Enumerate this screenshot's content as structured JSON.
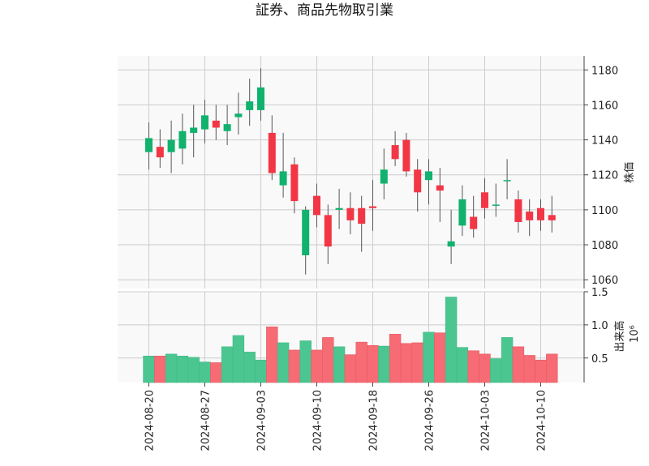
{
  "chart_data": {
    "type": "candlestick",
    "title": "証券、商品先物取引業",
    "price_axis_label": "株価",
    "volume_axis_label": "出来高",
    "volume_multiplier_label": "10⁶",
    "date_tick_labels": [
      "2024-08-20",
      "2024-08-27",
      "2024-09-03",
      "2024-09-10",
      "2024-09-18",
      "2024-09-26",
      "2024-10-03",
      "2024-10-10"
    ],
    "price_ylim": [
      1055,
      1188
    ],
    "price_ticks": [
      1060,
      1080,
      1100,
      1120,
      1140,
      1160,
      1180
    ],
    "volume_ylim": [
      0.13,
      1.5
    ],
    "volume_ticks": [
      0.5,
      1.0,
      1.5
    ],
    "colors": {
      "up": "#10b26e",
      "down": "#f23645",
      "up_volume": "#4cc691",
      "down_volume": "#f66b74",
      "wick": "#555555",
      "grid": "#cccccc",
      "panel": "#f9f9f9"
    },
    "candles": [
      {
        "date": "2024-08-20",
        "open": 1133,
        "high": 1150,
        "low": 1123,
        "close": 1141,
        "volume": 0.53
      },
      {
        "date": "2024-08-21",
        "open": 1136,
        "high": 1146,
        "low": 1124,
        "close": 1130,
        "volume": 0.53
      },
      {
        "date": "2024-08-22",
        "open": 1133,
        "high": 1151,
        "low": 1121,
        "close": 1140,
        "volume": 0.56
      },
      {
        "date": "2024-08-23",
        "open": 1135,
        "high": 1155,
        "low": 1126,
        "close": 1145,
        "volume": 0.53
      },
      {
        "date": "2024-08-26",
        "open": 1144,
        "high": 1160,
        "low": 1130,
        "close": 1147,
        "volume": 0.51
      },
      {
        "date": "2024-08-27",
        "open": 1146,
        "high": 1163,
        "low": 1138,
        "close": 1154,
        "volume": 0.44
      },
      {
        "date": "2024-08-28",
        "open": 1151,
        "high": 1160,
        "low": 1140,
        "close": 1147,
        "volume": 0.43
      },
      {
        "date": "2024-08-29",
        "open": 1145,
        "high": 1160,
        "low": 1137,
        "close": 1149,
        "volume": 0.67
      },
      {
        "date": "2024-08-30",
        "open": 1153,
        "high": 1167,
        "low": 1143,
        "close": 1155,
        "volume": 0.84
      },
      {
        "date": "2024-09-02",
        "open": 1157,
        "high": 1175,
        "low": 1148,
        "close": 1162,
        "volume": 0.59
      },
      {
        "date": "2024-09-03",
        "open": 1157,
        "high": 1181,
        "low": 1151,
        "close": 1170,
        "volume": 0.47
      },
      {
        "date": "2024-09-04",
        "open": 1144,
        "high": 1154,
        "low": 1117,
        "close": 1121,
        "volume": 0.97
      },
      {
        "date": "2024-09-05",
        "open": 1114,
        "high": 1144,
        "low": 1107,
        "close": 1122,
        "volume": 0.73
      },
      {
        "date": "2024-09-06",
        "open": 1126,
        "high": 1130,
        "low": 1098,
        "close": 1105,
        "volume": 0.62
      },
      {
        "date": "2024-09-09",
        "open": 1074,
        "high": 1102,
        "low": 1063,
        "close": 1100,
        "volume": 0.76
      },
      {
        "date": "2024-09-10",
        "open": 1108,
        "high": 1115,
        "low": 1090,
        "close": 1097,
        "volume": 0.62
      },
      {
        "date": "2024-09-11",
        "open": 1097,
        "high": 1103,
        "low": 1069,
        "close": 1079,
        "volume": 0.81
      },
      {
        "date": "2024-09-12",
        "open": 1100,
        "high": 1112,
        "low": 1089,
        "close": 1101,
        "volume": 0.67
      },
      {
        "date": "2024-09-13",
        "open": 1101,
        "high": 1110,
        "low": 1086,
        "close": 1094,
        "volume": 0.55
      },
      {
        "date": "2024-09-17",
        "open": 1101,
        "high": 1108,
        "low": 1076,
        "close": 1092,
        "volume": 0.74
      },
      {
        "date": "2024-09-18",
        "open": 1102,
        "high": 1117,
        "low": 1088,
        "close": 1101,
        "volume": 0.69
      },
      {
        "date": "2024-09-19",
        "open": 1115,
        "high": 1135,
        "low": 1106,
        "close": 1123,
        "volume": 0.68
      },
      {
        "date": "2024-09-20",
        "open": 1137,
        "high": 1145,
        "low": 1125,
        "close": 1129,
        "volume": 0.86
      },
      {
        "date": "2024-09-24",
        "open": 1140,
        "high": 1144,
        "low": 1119,
        "close": 1122,
        "volume": 0.72
      },
      {
        "date": "2024-09-25",
        "open": 1123,
        "high": 1129,
        "low": 1099,
        "close": 1110,
        "volume": 0.73
      },
      {
        "date": "2024-09-26",
        "open": 1117,
        "high": 1129,
        "low": 1103,
        "close": 1122,
        "volume": 0.89
      },
      {
        "date": "2024-09-27",
        "open": 1114,
        "high": 1124,
        "low": 1093,
        "close": 1111,
        "volume": 0.88
      },
      {
        "date": "2024-09-30",
        "open": 1079,
        "high": 1100,
        "low": 1069,
        "close": 1082,
        "volume": 1.42
      },
      {
        "date": "2024-10-01",
        "open": 1091,
        "high": 1114,
        "low": 1085,
        "close": 1106,
        "volume": 0.66
      },
      {
        "date": "2024-10-02",
        "open": 1096,
        "high": 1108,
        "low": 1084,
        "close": 1089,
        "volume": 0.61
      },
      {
        "date": "2024-10-03",
        "open": 1110,
        "high": 1118,
        "low": 1095,
        "close": 1101,
        "volume": 0.56
      },
      {
        "date": "2024-10-04",
        "open": 1103,
        "high": 1115,
        "low": 1096,
        "close": 1103,
        "volume": 0.49
      },
      {
        "date": "2024-10-07",
        "open": 1117,
        "high": 1129,
        "low": 1106,
        "close": 1117,
        "volume": 0.81
      },
      {
        "date": "2024-10-08",
        "open": 1106,
        "high": 1111,
        "low": 1087,
        "close": 1093,
        "volume": 0.67
      },
      {
        "date": "2024-10-09",
        "open": 1099,
        "high": 1106,
        "low": 1085,
        "close": 1094,
        "volume": 0.54
      },
      {
        "date": "2024-10-10",
        "open": 1101,
        "high": 1106,
        "low": 1088,
        "close": 1094,
        "volume": 0.47
      },
      {
        "date": "2024-10-11",
        "open": 1097,
        "high": 1108,
        "low": 1087,
        "close": 1094,
        "volume": 0.56
      }
    ]
  }
}
